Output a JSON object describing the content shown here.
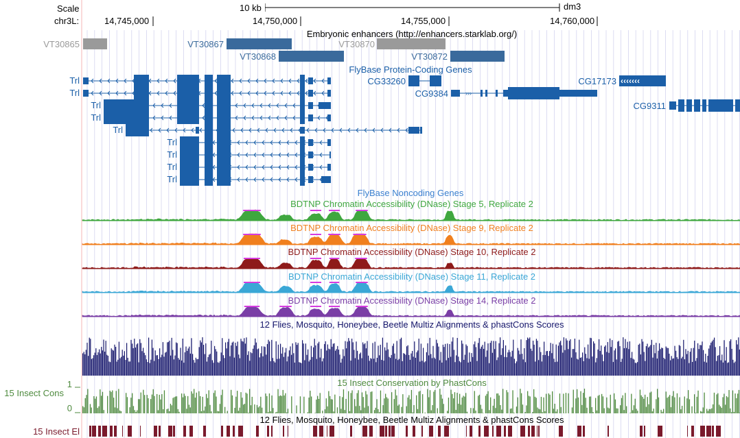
{
  "ruler": {
    "scale_label": "Scale",
    "chrom_label": "chr3L:",
    "scale_text": "10 kb",
    "assembly": "dm3",
    "positions": [
      "14,745,000",
      "14,750,000",
      "14,755,000",
      "14,760,000"
    ]
  },
  "tracks": {
    "enhancers": {
      "title": "Embryonic enhancers (http://enhancers.starklab.org/)",
      "items": [
        "VT30865",
        "VT30867",
        "VT30868",
        "VT30870",
        "VT30872"
      ]
    },
    "flybase_coding": {
      "title": "FlyBase Protein-Coding Genes",
      "trl_labels": [
        "Trl",
        "Trl",
        "Trl",
        "Trl",
        "Trl",
        "Trl",
        "Trl",
        "Trl",
        "Trl"
      ],
      "genes": [
        "CG33260",
        "CG9384",
        "CG17173",
        "CG9311"
      ]
    },
    "flybase_noncoding": {
      "title": "FlyBase Noncoding Genes"
    },
    "dnase": [
      {
        "title": "BDTNP Chromatin Accessibility (DNase) Stage 5, Replicate 2",
        "color": "#3fa73f"
      },
      {
        "title": "BDTNP Chromatin Accessibility (DNase) Stage 9, Replicate 2",
        "color": "#f07f1e"
      },
      {
        "title": "BDTNP Chromatin Accessibility (DNase) Stage 10, Replicate 2",
        "color": "#8e1a1a"
      },
      {
        "title": "BDTNP Chromatin Accessibility (DNase) Stage 11, Replicate 2",
        "color": "#3aa7d6"
      },
      {
        "title": "BDTNP Chromatin Accessibility (DNase) Stage 14, Replicate 2",
        "color": "#7a3ea6"
      }
    ],
    "multiz": {
      "title": "12 Flies, Mosquito, Honeybee, Beetle Multiz Alignments & phastCons Scores",
      "color": "#15166b"
    },
    "phastcons": {
      "title": "15 Insect Conservation by PhastCons",
      "side_label": "15 Insect Cons",
      "axis_max": "1",
      "axis_min": "0",
      "color": "#4e8a3e"
    },
    "elements": {
      "title": "12 Flies, Mosquito, Honeybee, Beetle Multiz Alignments & phastCons Scores",
      "side_label": "15 Insect El",
      "color": "#7a1a2c"
    }
  },
  "colors": {
    "gene_blue": "#1b5fa8",
    "enh_blue": "#3a6a9c",
    "enh_gray": "#9a9a9a",
    "grid": "#d4d4ee"
  }
}
